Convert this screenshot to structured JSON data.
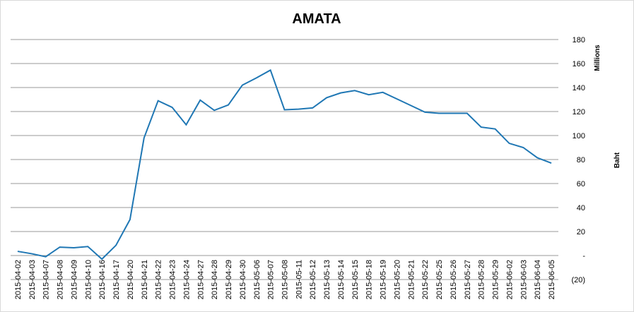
{
  "chart_data": {
    "type": "line",
    "title": "AMATA",
    "y_axis_label_top": "Millions",
    "y_axis_label": "Baht",
    "categories": [
      "2015-04-02",
      "2015-04-03",
      "2015-04-07",
      "2015-04-08",
      "2015-04-09",
      "2015-04-10",
      "2015-04-16",
      "2015-04-17",
      "2015-04-20",
      "2015-04-21",
      "2015-04-22",
      "2015-04-23",
      "2015-04-24",
      "2015-04-27",
      "2015-04-28",
      "2015-04-29",
      "2015-04-30",
      "2015-05-06",
      "2015-05-07",
      "2015-05-08",
      "2015-05-11",
      "2015-05-12",
      "2015-05-13",
      "2015-05-14",
      "2015-05-15",
      "2015-05-18",
      "2015-05-19",
      "2015-05-20",
      "2015-05-21",
      "2015-05-22",
      "2015-05-25",
      "2015-05-26",
      "2015-05-27",
      "2015-05-28",
      "2015-05-29",
      "2015-06-02",
      "2015-06-03",
      "2015-06-04",
      "2015-06-05"
    ],
    "values": [
      3.5,
      1.5,
      -1,
      7,
      6.5,
      7.5,
      -3,
      8.5,
      30,
      98,
      129,
      123.5,
      109,
      129.5,
      121,
      125.5,
      142,
      148,
      154.5,
      121.5,
      122,
      123,
      131.5,
      135.5,
      137.5,
      134,
      136,
      130.5,
      125,
      119.5,
      118.5,
      118.5,
      118.5,
      107,
      105.5,
      93.5,
      90,
      81.5,
      77
    ],
    "color": "#1f77b4",
    "ylim": [
      -20,
      180
    ],
    "yticks": [
      {
        "value": -20,
        "label": "(20)"
      },
      {
        "value": 0,
        "label": "-"
      },
      20,
      40,
      60,
      80,
      100,
      120,
      140,
      160,
      180
    ],
    "grid": true
  }
}
